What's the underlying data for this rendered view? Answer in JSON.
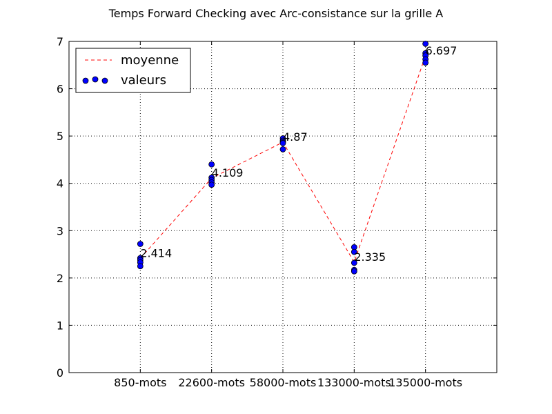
{
  "chart_data": {
    "type": "line",
    "title": "Temps Forward Checking avec Arc-consistance sur la grille A",
    "xlabel": "",
    "ylabel": "",
    "categories": [
      "850-mots",
      "22600-mots",
      "58000-mots",
      "133000-mots",
      "135000-mots"
    ],
    "ylim": [
      0,
      7
    ],
    "yticks": [
      "0",
      "1",
      "2",
      "3",
      "4",
      "5",
      "6",
      "7"
    ],
    "grid": true,
    "legend_position": "top-left",
    "series": [
      {
        "name": "moyenne",
        "kind": "line",
        "style": "dashed",
        "color": "#ff0000",
        "values": [
          2.414,
          4.109,
          4.87,
          2.335,
          6.697
        ]
      },
      {
        "name": "valeurs",
        "kind": "scatter",
        "color": "#0000ff",
        "points": [
          [
            2.72,
            2.42,
            2.38,
            2.33,
            2.25
          ],
          [
            4.4,
            4.12,
            4.07,
            4.02,
            3.97
          ],
          [
            4.95,
            4.9,
            4.87,
            4.85,
            4.72
          ],
          [
            2.65,
            2.55,
            2.32,
            2.17,
            2.14
          ],
          [
            6.95,
            6.75,
            6.7,
            6.62,
            6.55
          ]
        ]
      }
    ],
    "annotations": [
      "2.414",
      "4.109",
      "4.87",
      "2.335",
      "6.697"
    ]
  }
}
